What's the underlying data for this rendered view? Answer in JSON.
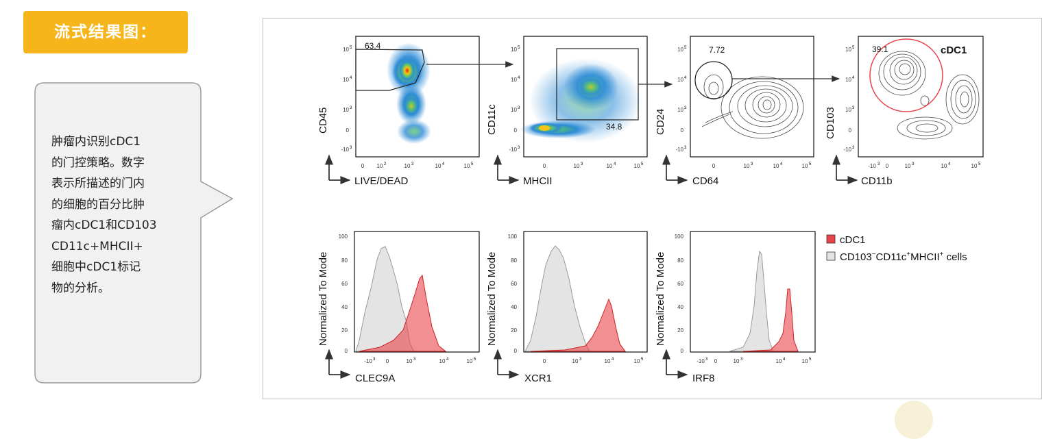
{
  "title": "流式结果图：",
  "description_lines": [
    "肿瘤内识别cDC1",
    "的门控策略。数字",
    "表示所描述的门内",
    "的细胞的百分比肿",
    "瘤内cDC1和CD103",
    "CD11c+MHCII+",
    "细胞中cDC1标记",
    "物的分析。"
  ],
  "scatter_panels": [
    {
      "ylabel": "CD45",
      "xlabel": "LIVE/DEAD",
      "gate_value": "63.4"
    },
    {
      "ylabel": "CD11c",
      "xlabel": "MHCII",
      "gate_value": "34.8"
    },
    {
      "ylabel": "CD24",
      "xlabel": "CD64",
      "gate_value": "7.72"
    },
    {
      "ylabel": "CD103",
      "xlabel": "CD11b",
      "gate_value": "39.1",
      "gate_label": "cDC1"
    }
  ],
  "histogram_panels": [
    {
      "ylabel": "Normalized To Mode",
      "xlabel": "CLEC9A"
    },
    {
      "ylabel": "Normalized To Mode",
      "xlabel": "XCR1"
    },
    {
      "ylabel": "Normalized To Mode",
      "xlabel": "IRF8"
    }
  ],
  "legend": {
    "cdc1": "cDC1",
    "other_prefix": "CD103",
    "other_sup1": "−",
    "other_mid1": "CD11c",
    "other_sup2": "+",
    "other_mid2": "MHCII",
    "other_sup3": "+",
    "other_suffix": " cells"
  },
  "colors": {
    "accent": "#f6b51b",
    "cdc1_fill": "#e8444a",
    "other_fill": "#e4e4e4"
  }
}
